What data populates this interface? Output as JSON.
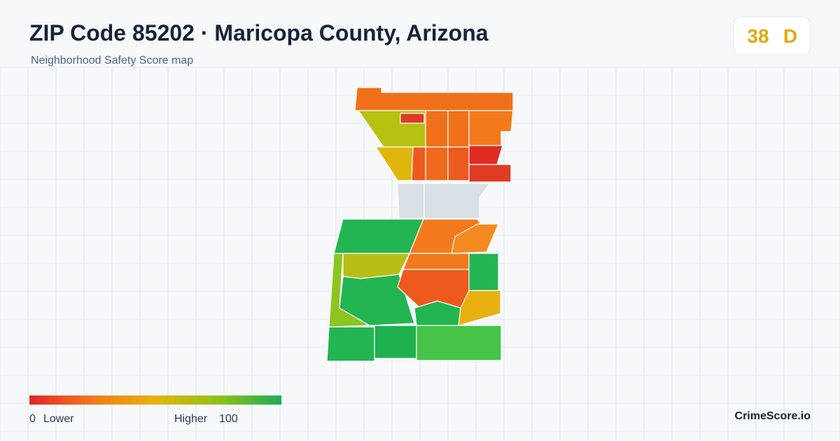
{
  "header": {
    "title": "ZIP Code 85202 · Maricopa County, Arizona",
    "subtitle": "Neighborhood Safety Score map"
  },
  "badge": {
    "score": 38,
    "grade": "D"
  },
  "legend": {
    "min": 0,
    "min_label": "Lower",
    "max_label": "Higher",
    "max": 100
  },
  "footer": {
    "brand": "CrimeScore.io"
  }
}
